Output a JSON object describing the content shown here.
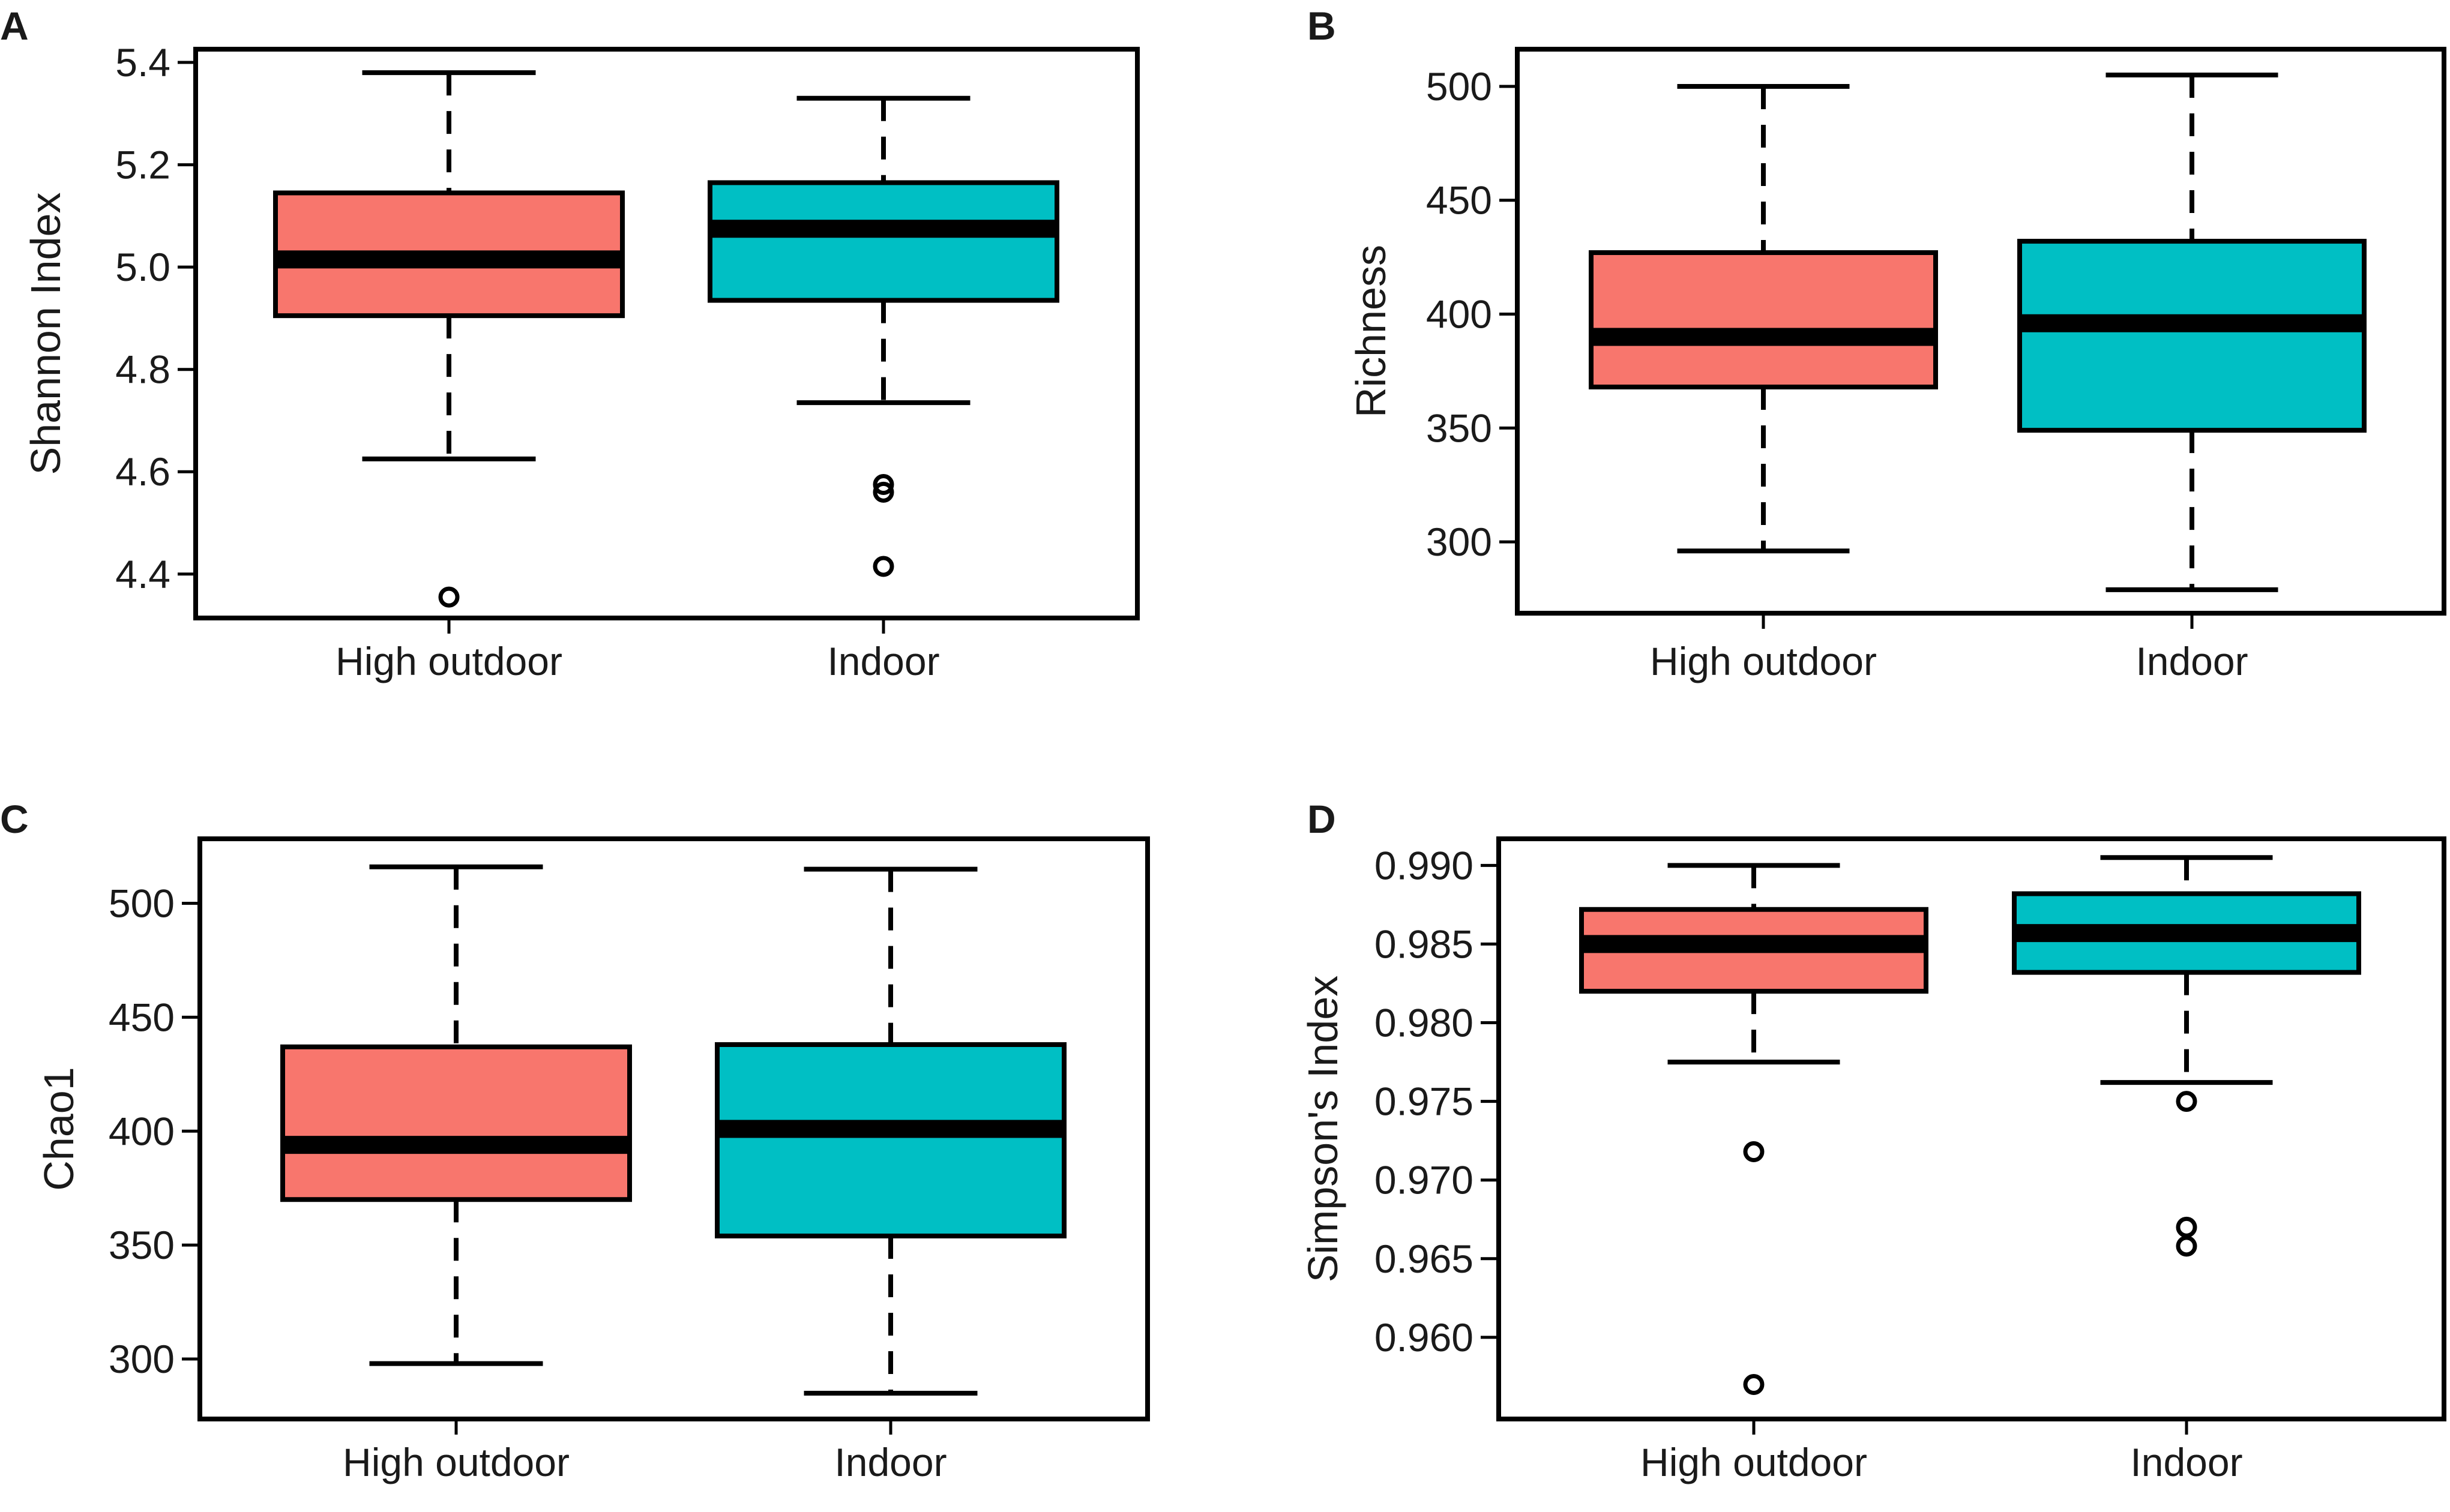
{
  "colors": {
    "high_outdoor": "#f8766d",
    "indoor": "#00bfc4",
    "stroke": "#000000"
  },
  "chart_data": [
    {
      "type": "box",
      "panel": "A",
      "ylabel": "Shannon Index",
      "ylim": [
        4.32,
        5.42
      ],
      "yticks": [
        4.4,
        4.6,
        4.8,
        5.0,
        5.2,
        5.4
      ],
      "ytick_labels": [
        "4.4",
        "4.6",
        "4.8",
        "5.0",
        "5.2",
        "5.4"
      ],
      "categories": [
        "High outdoor",
        "Indoor"
      ],
      "boxes": [
        {
          "name": "High outdoor",
          "whisker_low": 4.625,
          "q1": 4.905,
          "median": 5.015,
          "q3": 5.145,
          "whisker_high": 5.38,
          "outliers": [
            4.355
          ]
        },
        {
          "name": "Indoor",
          "whisker_low": 4.735,
          "q1": 4.935,
          "median": 5.075,
          "q3": 5.165,
          "whisker_high": 5.33,
          "outliers": [
            4.575,
            4.56,
            4.415
          ]
        }
      ]
    },
    {
      "type": "box",
      "panel": "B",
      "ylabel": "Richness",
      "ylim": [
        270,
        515
      ],
      "yticks": [
        300,
        350,
        400,
        450,
        500
      ],
      "ytick_labels": [
        "300",
        "350",
        "400",
        "450",
        "500"
      ],
      "categories": [
        "High outdoor",
        "Indoor"
      ],
      "boxes": [
        {
          "name": "High outdoor",
          "whisker_low": 296,
          "q1": 368,
          "median": 390,
          "q3": 427,
          "whisker_high": 500,
          "outliers": []
        },
        {
          "name": "Indoor",
          "whisker_low": 279,
          "q1": 349,
          "median": 396,
          "q3": 432,
          "whisker_high": 505,
          "outliers": []
        }
      ]
    },
    {
      "type": "box",
      "panel": "C",
      "ylabel": "Chao1",
      "ylim": [
        275,
        527
      ],
      "yticks": [
        300,
        350,
        400,
        450,
        500
      ],
      "ytick_labels": [
        "300",
        "350",
        "400",
        "450",
        "500"
      ],
      "categories": [
        "High outdoor",
        "Indoor"
      ],
      "boxes": [
        {
          "name": "High outdoor",
          "whisker_low": 298,
          "q1": 370,
          "median": 394,
          "q3": 437,
          "whisker_high": 516,
          "outliers": []
        },
        {
          "name": "Indoor",
          "whisker_low": 285,
          "q1": 354,
          "median": 401,
          "q3": 438,
          "whisker_high": 515,
          "outliers": []
        }
      ]
    },
    {
      "type": "box",
      "panel": "D",
      "ylabel": "Simpson's Index",
      "ylim": [
        0.955,
        0.9915
      ],
      "yticks": [
        0.96,
        0.965,
        0.97,
        0.975,
        0.98,
        0.985,
        0.99
      ],
      "ytick_labels": [
        "0.960",
        "0.965",
        "0.970",
        "0.975",
        "0.980",
        "0.985",
        "0.990"
      ],
      "categories": [
        "High outdoor",
        "Indoor"
      ],
      "boxes": [
        {
          "name": "High outdoor",
          "whisker_low": 0.9775,
          "q1": 0.982,
          "median": 0.985,
          "q3": 0.9872,
          "whisker_high": 0.99,
          "outliers": [
            0.9718,
            0.957
          ]
        },
        {
          "name": "Indoor",
          "whisker_low": 0.9762,
          "q1": 0.9832,
          "median": 0.9857,
          "q3": 0.9882,
          "whisker_high": 0.9905,
          "outliers": [
            0.975,
            0.967,
            0.9658
          ]
        }
      ]
    }
  ]
}
